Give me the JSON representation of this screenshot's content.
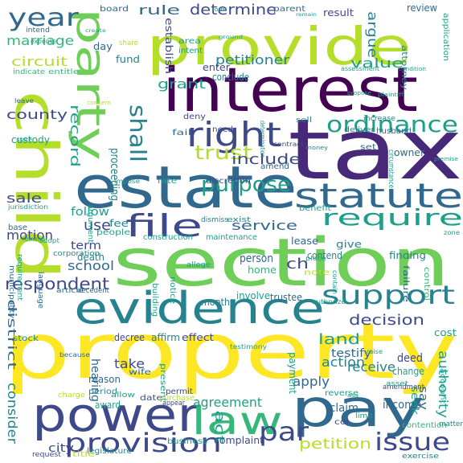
{
  "colors": {
    "background": "#ffffff",
    "palette": {
      "deep_purple": "#440154",
      "purple": "#482878",
      "indigo": "#3e4989",
      "blue": "#31688e",
      "teal_blue": "#26828e",
      "teal": "#1f9e89",
      "green": "#35b779",
      "light_green": "#6ece58",
      "lime": "#b5de2b",
      "yellow": "#fde725"
    }
  },
  "words": [
    {
      "text": "property",
      "color": "yellow"
    },
    {
      "text": "section",
      "color": "light_green"
    },
    {
      "text": "tax",
      "color": "purple"
    },
    {
      "text": "interest",
      "color": "deep_purple"
    },
    {
      "text": "provide",
      "color": "lime"
    },
    {
      "text": "estate",
      "color": "blue"
    },
    {
      "text": "child",
      "color": "lime"
    },
    {
      "text": "evidence",
      "color": "teal_blue"
    },
    {
      "text": "pay",
      "color": "blue"
    },
    {
      "text": "power",
      "color": "indigo"
    },
    {
      "text": "party",
      "color": "light_green"
    },
    {
      "text": "statute",
      "color": "blue"
    },
    {
      "text": "law",
      "color": "green"
    },
    {
      "text": "right",
      "color": "indigo"
    },
    {
      "text": "file",
      "color": "indigo"
    },
    {
      "text": "provision",
      "color": "indigo"
    },
    {
      "text": "support",
      "color": "teal_blue"
    },
    {
      "text": "require",
      "color": "teal"
    },
    {
      "text": "year",
      "color": "blue"
    },
    {
      "text": "issue",
      "color": "indigo"
    },
    {
      "text": "ordinance",
      "color": "teal"
    },
    {
      "text": "par",
      "color": "indigo"
    },
    {
      "text": "shall",
      "color": "teal_blue"
    },
    {
      "text": "purpose",
      "color": "teal"
    },
    {
      "text": "determine",
      "color": "indigo"
    },
    {
      "text": "trust",
      "color": "lime"
    },
    {
      "text": "respondent",
      "color": "indigo"
    },
    {
      "text": "record",
      "color": "teal"
    },
    {
      "text": "petitioner",
      "color": "teal_blue"
    },
    {
      "text": "circuit",
      "color": "lime"
    },
    {
      "text": "county",
      "color": "indigo"
    },
    {
      "text": "marriage",
      "color": "green"
    },
    {
      "text": "grant",
      "color": "teal"
    },
    {
      "text": "include",
      "color": "indigo"
    },
    {
      "text": "service",
      "color": "blue"
    },
    {
      "text": "decision",
      "color": "indigo"
    },
    {
      "text": "land",
      "color": "teal"
    },
    {
      "text": "use",
      "color": "indigo"
    },
    {
      "text": "rule",
      "color": "blue"
    },
    {
      "text": "value",
      "color": "teal"
    },
    {
      "text": "argue",
      "color": "teal_blue"
    },
    {
      "text": "petition",
      "color": "lime"
    },
    {
      "text": "sale",
      "color": "indigo"
    },
    {
      "text": "motion",
      "color": "indigo"
    },
    {
      "text": "district",
      "color": "blue"
    },
    {
      "text": "consider",
      "color": "teal_blue"
    },
    {
      "text": "school",
      "color": "blue"
    },
    {
      "text": "act",
      "color": "teal"
    },
    {
      "text": "action",
      "color": "teal_blue"
    },
    {
      "text": "agreement",
      "color": "teal"
    },
    {
      "text": "authority",
      "color": "teal"
    },
    {
      "text": "testify",
      "color": "blue"
    },
    {
      "text": "receive",
      "color": "teal_blue"
    },
    {
      "text": "apply",
      "color": "blue"
    },
    {
      "text": "hearing",
      "color": "blue"
    },
    {
      "text": "take",
      "color": "indigo"
    },
    {
      "text": "city",
      "color": "indigo"
    },
    {
      "text": "proceeding",
      "color": "teal_blue"
    },
    {
      "text": "follow",
      "color": "teal"
    },
    {
      "text": "term",
      "color": "indigo"
    },
    {
      "text": "ch",
      "color": "indigo"
    },
    {
      "text": "person",
      "color": "blue"
    },
    {
      "text": "home",
      "color": "green"
    },
    {
      "text": "trustee",
      "color": "blue"
    },
    {
      "text": "involve",
      "color": "teal"
    },
    {
      "text": "income",
      "color": "blue"
    },
    {
      "text": "claim",
      "color": "blue"
    },
    {
      "text": "say",
      "color": "blue"
    },
    {
      "text": "payment",
      "color": "teal"
    },
    {
      "text": "custody",
      "color": "teal"
    },
    {
      "text": "establish",
      "color": "indigo"
    },
    {
      "text": "review",
      "color": "blue"
    },
    {
      "text": "deed",
      "color": "indigo"
    },
    {
      "text": "change",
      "color": "teal"
    },
    {
      "text": "seek",
      "color": "teal"
    },
    {
      "text": "cost",
      "color": "teal"
    },
    {
      "text": "fee",
      "color": "teal_blue"
    },
    {
      "text": "month",
      "color": "teal_blue"
    },
    {
      "text": "death",
      "color": "teal_blue"
    },
    {
      "text": "affirm",
      "color": "teal_blue"
    },
    {
      "text": "effect",
      "color": "indigo"
    },
    {
      "text": "reason",
      "color": "blue"
    },
    {
      "text": "period",
      "color": "teal_blue"
    },
    {
      "text": "award",
      "color": "teal"
    },
    {
      "text": "decree",
      "color": "indigo"
    },
    {
      "text": "give",
      "color": "teal_blue"
    },
    {
      "text": "lease",
      "color": "blue"
    },
    {
      "text": "contend",
      "color": "teal_blue"
    },
    {
      "text": "finding",
      "color": "teal_blue"
    },
    {
      "text": "benefit",
      "color": "teal"
    },
    {
      "text": "enter",
      "color": "indigo"
    },
    {
      "text": "conclude",
      "color": "teal_blue"
    },
    {
      "text": "fund",
      "color": "teal_blue"
    },
    {
      "text": "day",
      "color": "blue"
    },
    {
      "text": "result",
      "color": "indigo"
    },
    {
      "text": "attorney",
      "color": "teal_blue"
    },
    {
      "text": "application",
      "color": "teal"
    },
    {
      "text": "need",
      "color": "indigo"
    },
    {
      "text": "deny",
      "color": "indigo"
    },
    {
      "text": "fail",
      "color": "blue"
    },
    {
      "text": "owner",
      "color": "blue"
    },
    {
      "text": "set",
      "color": "blue"
    },
    {
      "text": "amend",
      "color": "blue"
    },
    {
      "text": "husband",
      "color": "blue"
    },
    {
      "text": "deliver",
      "color": "teal_blue"
    },
    {
      "text": "rate",
      "color": "teal"
    },
    {
      "text": "discretion",
      "color": "indigo"
    },
    {
      "text": "people",
      "color": "teal"
    },
    {
      "text": "construction",
      "color": "teal"
    },
    {
      "text": "maintenance",
      "color": "teal"
    },
    {
      "text": "board",
      "color": "blue"
    },
    {
      "text": "parent",
      "color": "blue"
    },
    {
      "text": "area",
      "color": "teal"
    },
    {
      "text": "intent",
      "color": "teal"
    },
    {
      "text": "exist",
      "color": "teal_blue"
    },
    {
      "text": "dismiss",
      "color": "teal_blue"
    },
    {
      "text": "note",
      "color": "lime"
    },
    {
      "text": "notice",
      "color": "teal"
    },
    {
      "text": "building",
      "color": "teal"
    },
    {
      "text": "base",
      "color": "blue"
    },
    {
      "text": "stock",
      "color": "teal_blue"
    },
    {
      "text": "wife",
      "color": "blue"
    },
    {
      "text": "present",
      "color": "teal"
    },
    {
      "text": "date",
      "color": "indigo"
    },
    {
      "text": "purchase",
      "color": "lime"
    },
    {
      "text": "permit",
      "color": "indigo"
    },
    {
      "text": "legislature",
      "color": "teal_blue"
    },
    {
      "text": "business",
      "color": "teal"
    },
    {
      "text": "complaint",
      "color": "indigo"
    },
    {
      "text": "title",
      "color": "lime"
    },
    {
      "text": "request",
      "color": "indigo"
    },
    {
      "text": "exercise",
      "color": "teal_blue"
    },
    {
      "text": "contention",
      "color": "green"
    },
    {
      "text": "limit",
      "color": "teal"
    },
    {
      "text": "matter",
      "color": "teal_blue"
    },
    {
      "text": "amendment",
      "color": "indigo"
    },
    {
      "text": "reverse",
      "color": "teal"
    },
    {
      "text": "asset",
      "color": "teal"
    },
    {
      "text": "account",
      "color": "teal"
    },
    {
      "text": "failure",
      "color": "blue"
    },
    {
      "text": "control",
      "color": "green"
    },
    {
      "text": "circumstance",
      "color": "teal"
    },
    {
      "text": "language",
      "color": "blue"
    },
    {
      "text": "article",
      "color": "blue"
    },
    {
      "text": "decedent",
      "color": "blue"
    },
    {
      "text": "charge",
      "color": "lime"
    },
    {
      "text": "allow",
      "color": "teal"
    },
    {
      "text": "municipality",
      "color": "blue"
    },
    {
      "text": "requirement",
      "color": "teal"
    },
    {
      "text": "corporation",
      "color": "teal_blue"
    },
    {
      "text": "argument",
      "color": "teal"
    },
    {
      "text": "adopt",
      "color": "teal"
    },
    {
      "text": "remand",
      "color": "teal"
    },
    {
      "text": "jurisdiction",
      "color": "teal"
    },
    {
      "text": "indicate",
      "color": "green"
    },
    {
      "text": "entitle",
      "color": "green"
    },
    {
      "text": "intend",
      "color": "blue"
    },
    {
      "text": "expense",
      "color": "teal"
    },
    {
      "text": "share",
      "color": "lime"
    },
    {
      "text": "increase",
      "color": "teal_blue"
    },
    {
      "text": "impose",
      "color": "teal"
    },
    {
      "text": "money",
      "color": "teal_blue"
    },
    {
      "text": "contract",
      "color": "indigo"
    },
    {
      "text": "sell",
      "color": "teal_blue"
    },
    {
      "text": "determination",
      "color": "teal_blue"
    },
    {
      "text": "assessment",
      "color": "teal"
    },
    {
      "text": "condition",
      "color": "teal"
    },
    {
      "text": "place",
      "color": "teal"
    },
    {
      "text": "contain",
      "color": "teal"
    },
    {
      "text": "authorize",
      "color": "teal"
    },
    {
      "text": "appear",
      "color": "indigo"
    },
    {
      "text": "allege",
      "color": "teal"
    },
    {
      "text": "testimony",
      "color": "teal"
    },
    {
      "text": "because",
      "color": "blue"
    },
    {
      "text": "zone",
      "color": "teal"
    },
    {
      "text": "premise",
      "color": "teal"
    },
    {
      "text": "propose",
      "color": "teal"
    },
    {
      "text": "leave",
      "color": "blue"
    },
    {
      "text": "state",
      "color": "teal"
    },
    {
      "text": "raise",
      "color": "teal"
    },
    {
      "text": "col",
      "color": "indigo"
    },
    {
      "text": "form",
      "color": "teal"
    },
    {
      "text": "remain",
      "color": "teal"
    },
    {
      "text": "plaintiff",
      "color": "teal"
    },
    {
      "text": "ground",
      "color": "teal"
    },
    {
      "text": "create",
      "color": "teal"
    },
    {
      "text": "concern",
      "color": "lime"
    },
    {
      "text": "ass",
      "color": "teal"
    }
  ]
}
